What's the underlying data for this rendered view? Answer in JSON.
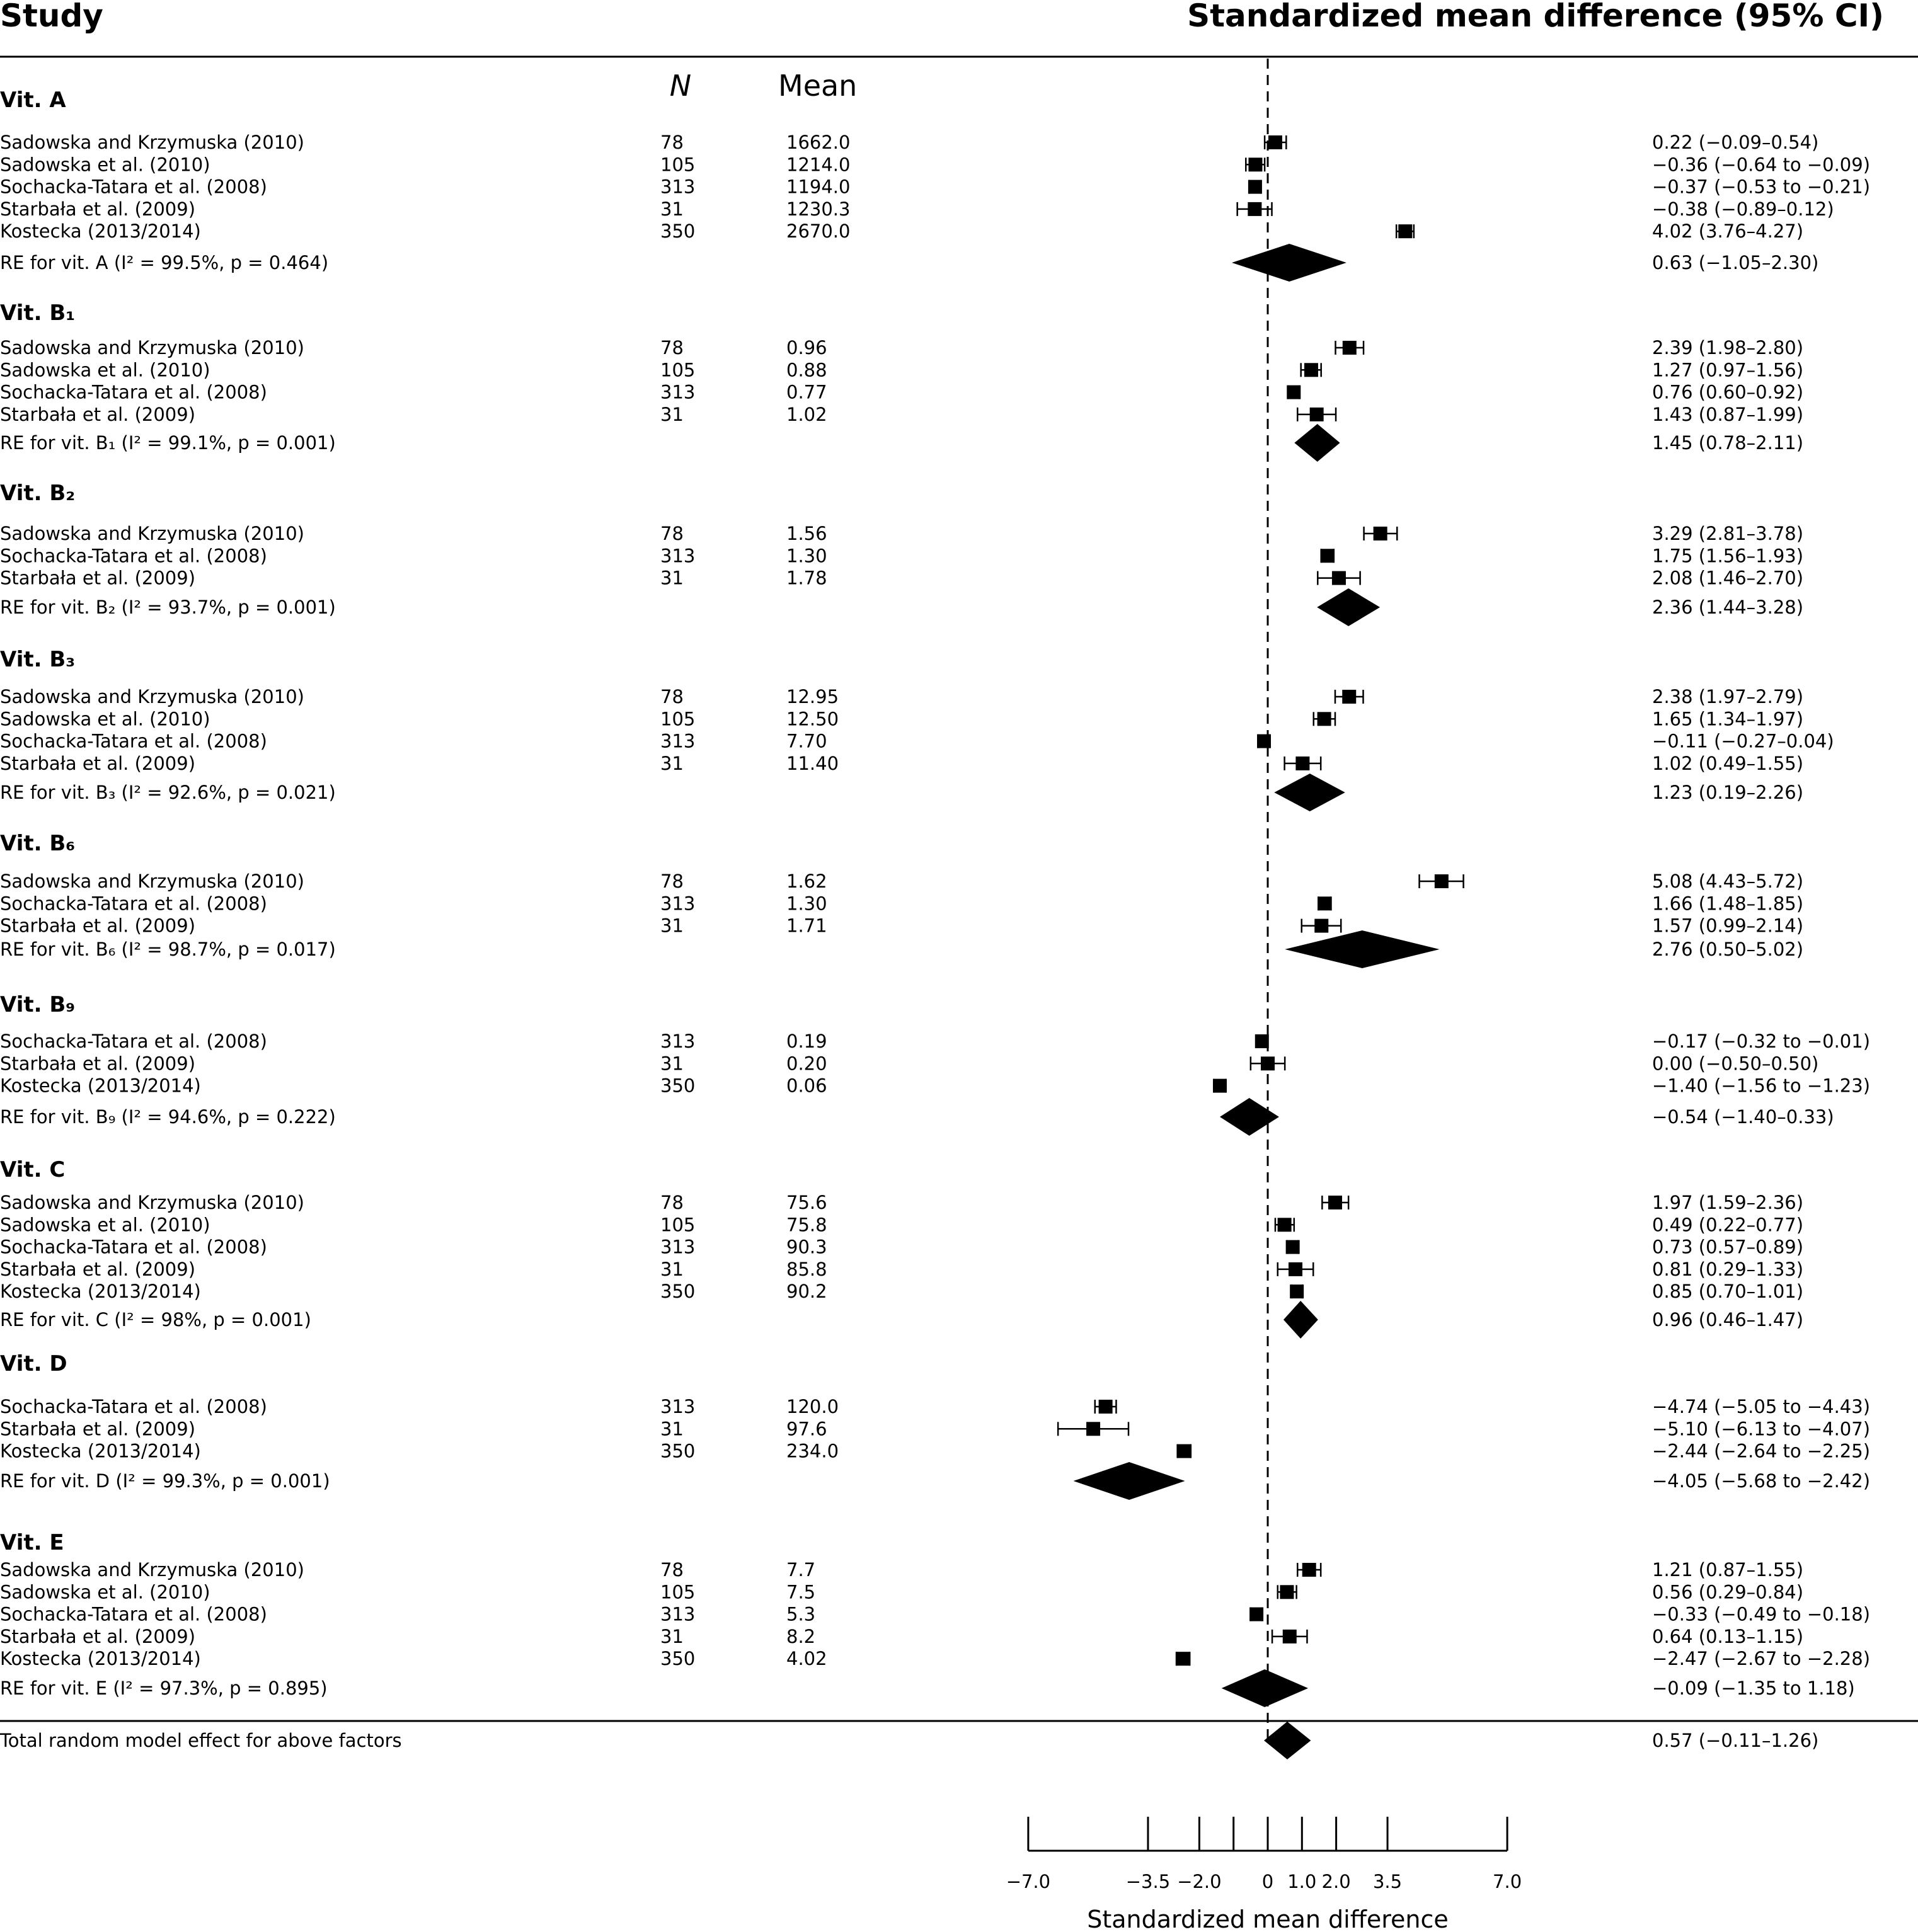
{
  "headers": {
    "study": "Study",
    "effect": "Standardized mean difference (95% CI)",
    "n": "N",
    "mean": "Mean"
  },
  "chart_data": {
    "type": "forest",
    "xlabel": "Standardized mean difference",
    "xlim": [
      -7.0,
      7.0
    ],
    "xticks": [
      -7.0,
      -3.5,
      -2.0,
      -1.0,
      0,
      1.0,
      2.0,
      3.5,
      7.0
    ],
    "xtick_labels": [
      "−7.0",
      "−3.5",
      "−2.0",
      "",
      "0",
      "1.0",
      "2.0",
      "3.5",
      "7.0"
    ],
    "reference_line": 0,
    "groups": [
      {
        "title": "Vit. A",
        "studies": [
          {
            "name": "Sadowska and Krzymuska (2010)",
            "n": "78",
            "mean": "1662.0",
            "est": 0.22,
            "lo": -0.09,
            "hi": 0.54,
            "ci": "0.22 (−0.09–0.54)"
          },
          {
            "name": "Sadowska et al. (2010)",
            "n": "105",
            "mean": "1214.0",
            "est": -0.36,
            "lo": -0.64,
            "hi": -0.09,
            "ci": "−0.36 (−0.64 to −0.09)"
          },
          {
            "name": "Sochacka-Tatara et al. (2008)",
            "n": "313",
            "mean": "1194.0",
            "est": -0.37,
            "lo": -0.53,
            "hi": -0.21,
            "ci": "−0.37 (−0.53 to −0.21)"
          },
          {
            "name": "Starbała et al. (2009)",
            "n": "31",
            "mean": "1230.3",
            "est": -0.38,
            "lo": -0.89,
            "hi": 0.12,
            "ci": "−0.38 (−0.89–0.12)"
          },
          {
            "name": "Kostecka (2013/2014)",
            "n": "350",
            "mean": "2670.0",
            "est": 4.02,
            "lo": 3.76,
            "hi": 4.27,
            "ci": "4.02 (3.76–4.27)"
          }
        ],
        "re": {
          "label": "RE for vit. A (I² = 99.5%, p = 0.464)",
          "est": 0.63,
          "lo": -1.05,
          "hi": 2.3,
          "ci": "0.63 (−1.05–2.30)"
        }
      },
      {
        "title": "Vit. B₁",
        "studies": [
          {
            "name": "Sadowska and Krzymuska (2010)",
            "n": "78",
            "mean": "0.96",
            "est": 2.39,
            "lo": 1.98,
            "hi": 2.8,
            "ci": "2.39 (1.98–2.80)"
          },
          {
            "name": "Sadowska et al. (2010)",
            "n": "105",
            "mean": "0.88",
            "est": 1.27,
            "lo": 0.97,
            "hi": 1.56,
            "ci": "1.27 (0.97–1.56)"
          },
          {
            "name": "Sochacka-Tatara et al. (2008)",
            "n": "313",
            "mean": "0.77",
            "est": 0.76,
            "lo": 0.6,
            "hi": 0.92,
            "ci": "0.76 (0.60–0.92)"
          },
          {
            "name": "Starbała et al. (2009)",
            "n": "31",
            "mean": "1.02",
            "est": 1.43,
            "lo": 0.87,
            "hi": 1.99,
            "ci": "1.43 (0.87–1.99)"
          }
        ],
        "re": {
          "label": "RE for vit. B₁ (I² = 99.1%, p = 0.001)",
          "est": 1.45,
          "lo": 0.78,
          "hi": 2.11,
          "ci": "1.45 (0.78–2.11)"
        }
      },
      {
        "title": "Vit. B₂",
        "studies": [
          {
            "name": "Sadowska and Krzymuska (2010)",
            "n": "78",
            "mean": "1.56",
            "est": 3.29,
            "lo": 2.81,
            "hi": 3.78,
            "ci": "3.29 (2.81–3.78)"
          },
          {
            "name": "Sochacka-Tatara et al. (2008)",
            "n": "313",
            "mean": "1.30",
            "est": 1.75,
            "lo": 1.56,
            "hi": 1.93,
            "ci": "1.75 (1.56–1.93)"
          },
          {
            "name": "Starbała et al. (2009)",
            "n": "31",
            "mean": "1.78",
            "est": 2.08,
            "lo": 1.46,
            "hi": 2.7,
            "ci": "2.08 (1.46–2.70)"
          }
        ],
        "re": {
          "label": "RE for vit. B₂ (I² = 93.7%, p = 0.001)",
          "est": 2.36,
          "lo": 1.44,
          "hi": 3.28,
          "ci": "2.36 (1.44–3.28)"
        }
      },
      {
        "title": "Vit. B₃",
        "studies": [
          {
            "name": "Sadowska and Krzymuska (2010)",
            "n": "78",
            "mean": "12.95",
            "est": 2.38,
            "lo": 1.97,
            "hi": 2.79,
            "ci": "2.38 (1.97–2.79)"
          },
          {
            "name": "Sadowska et al. (2010)",
            "n": "105",
            "mean": "12.50",
            "est": 1.65,
            "lo": 1.34,
            "hi": 1.97,
            "ci": "1.65 (1.34–1.97)"
          },
          {
            "name": "Sochacka-Tatara et al. (2008)",
            "n": "313",
            "mean": "7.70",
            "est": -0.11,
            "lo": -0.27,
            "hi": 0.04,
            "ci": "−0.11 (−0.27–0.04)"
          },
          {
            "name": "Starbała et al. (2009)",
            "n": "31",
            "mean": "11.40",
            "est": 1.02,
            "lo": 0.49,
            "hi": 1.55,
            "ci": "1.02 (0.49–1.55)"
          }
        ],
        "re": {
          "label": "RE for vit. B₃ (I² = 92.6%, p = 0.021)",
          "est": 1.23,
          "lo": 0.19,
          "hi": 2.26,
          "ci": "1.23 (0.19–2.26)"
        }
      },
      {
        "title": "Vit. B₆",
        "studies": [
          {
            "name": "Sadowska and Krzymuska (2010)",
            "n": "78",
            "mean": "1.62",
            "est": 5.08,
            "lo": 4.43,
            "hi": 5.72,
            "ci": "5.08 (4.43–5.72)"
          },
          {
            "name": "Sochacka-Tatara et al. (2008)",
            "n": "313",
            "mean": "1.30",
            "est": 1.66,
            "lo": 1.48,
            "hi": 1.85,
            "ci": "1.66 (1.48–1.85)"
          },
          {
            "name": "Starbała et al. (2009)",
            "n": "31",
            "mean": "1.71",
            "est": 1.57,
            "lo": 0.99,
            "hi": 2.14,
            "ci": "1.57 (0.99–2.14)"
          }
        ],
        "re": {
          "label": "RE for vit. B₆ (I² = 98.7%, p = 0.017)",
          "est": 2.76,
          "lo": 0.5,
          "hi": 5.02,
          "ci": "2.76 (0.50–5.02)"
        }
      },
      {
        "title": "Vit. B₉",
        "studies": [
          {
            "name": "Sochacka-Tatara et al. (2008)",
            "n": "313",
            "mean": "0.19",
            "est": -0.17,
            "lo": -0.32,
            "hi": -0.01,
            "ci": "−0.17 (−0.32 to −0.01)"
          },
          {
            "name": "Starbała et al. (2009)",
            "n": "31",
            "mean": "0.20",
            "est": 0.0,
            "lo": -0.5,
            "hi": 0.5,
            "ci": "0.00 (−0.50–0.50)"
          },
          {
            "name": "Kostecka (2013/2014)",
            "n": "350",
            "mean": "0.06",
            "est": -1.4,
            "lo": -1.56,
            "hi": -1.23,
            "ci": "−1.40 (−1.56 to −1.23)"
          }
        ],
        "re": {
          "label": "RE for vit. B₉ (I² = 94.6%, p = 0.222)",
          "est": -0.54,
          "lo": -1.4,
          "hi": 0.33,
          "ci": "−0.54 (−1.40–0.33)"
        }
      },
      {
        "title": "Vit. C",
        "studies": [
          {
            "name": "Sadowska and Krzymuska (2010)",
            "n": "78",
            "mean": "75.6",
            "est": 1.97,
            "lo": 1.59,
            "hi": 2.36,
            "ci": "1.97 (1.59–2.36)"
          },
          {
            "name": "Sadowska et al. (2010)",
            "n": "105",
            "mean": "75.8",
            "est": 0.49,
            "lo": 0.22,
            "hi": 0.77,
            "ci": "0.49 (0.22–0.77)"
          },
          {
            "name": "Sochacka-Tatara et al. (2008)",
            "n": "313",
            "mean": "90.3",
            "est": 0.73,
            "lo": 0.57,
            "hi": 0.89,
            "ci": "0.73 (0.57–0.89)"
          },
          {
            "name": "Starbała et al. (2009)",
            "n": "31",
            "mean": "85.8",
            "est": 0.81,
            "lo": 0.29,
            "hi": 1.33,
            "ci": "0.81 (0.29–1.33)"
          },
          {
            "name": "Kostecka (2013/2014)",
            "n": "350",
            "mean": "90.2",
            "est": 0.85,
            "lo": 0.7,
            "hi": 1.01,
            "ci": "0.85 (0.70–1.01)"
          }
        ],
        "re": {
          "label": "RE for vit. C (I² = 98%, p = 0.001)",
          "est": 0.96,
          "lo": 0.46,
          "hi": 1.47,
          "ci": "0.96 (0.46–1.47)"
        }
      },
      {
        "title": "Vit. D",
        "studies": [
          {
            "name": "Sochacka-Tatara et al. (2008)",
            "n": "313",
            "mean": "120.0",
            "est": -4.74,
            "lo": -5.05,
            "hi": -4.43,
            "ci": "−4.74 (−5.05 to −4.43)"
          },
          {
            "name": "Starbała et al. (2009)",
            "n": "31",
            "mean": "97.6",
            "est": -5.1,
            "lo": -6.13,
            "hi": -4.07,
            "ci": "−5.10 (−6.13 to −4.07)"
          },
          {
            "name": "Kostecka (2013/2014)",
            "n": "350",
            "mean": "234.0",
            "est": -2.44,
            "lo": -2.64,
            "hi": -2.25,
            "ci": "−2.44 (−2.64 to −2.25)"
          }
        ],
        "re": {
          "label": "RE for vit. D (I² = 99.3%, p = 0.001)",
          "est": -4.05,
          "lo": -5.68,
          "hi": -2.42,
          "ci": "−4.05 (−5.68 to −2.42)"
        }
      },
      {
        "title": "Vit. E",
        "studies": [
          {
            "name": "Sadowska and Krzymuska (2010)",
            "n": "78",
            "mean": "7.7",
            "est": 1.21,
            "lo": 0.87,
            "hi": 1.55,
            "ci": "1.21 (0.87–1.55)"
          },
          {
            "name": "Sadowska et al. (2010)",
            "n": "105",
            "mean": "7.5",
            "est": 0.56,
            "lo": 0.29,
            "hi": 0.84,
            "ci": "0.56 (0.29–0.84)"
          },
          {
            "name": "Sochacka-Tatara et al. (2008)",
            "n": "313",
            "mean": "5.3",
            "est": -0.33,
            "lo": -0.49,
            "hi": -0.18,
            "ci": "−0.33 (−0.49 to −0.18)"
          },
          {
            "name": "Starbała et al. (2009)",
            "n": "31",
            "mean": "8.2",
            "est": 0.64,
            "lo": 0.13,
            "hi": 1.15,
            "ci": "0.64 (0.13–1.15)"
          },
          {
            "name": "Kostecka (2013/2014)",
            "n": "350",
            "mean": "4.02",
            "est": -2.47,
            "lo": -2.67,
            "hi": -2.28,
            "ci": "−2.47 (−2.67 to −2.28)"
          }
        ],
        "re": {
          "label": "RE for vit. E (I² = 97.3%, p = 0.895)",
          "est": -0.09,
          "lo": -1.35,
          "hi": 1.18,
          "ci": "−0.09 (−1.35 to 1.18)"
        }
      }
    ],
    "total": {
      "label": "Total random model effect for above factors",
      "est": 0.57,
      "lo": -0.11,
      "hi": 1.26,
      "ci": "0.57 (−0.11–1.26)"
    }
  }
}
